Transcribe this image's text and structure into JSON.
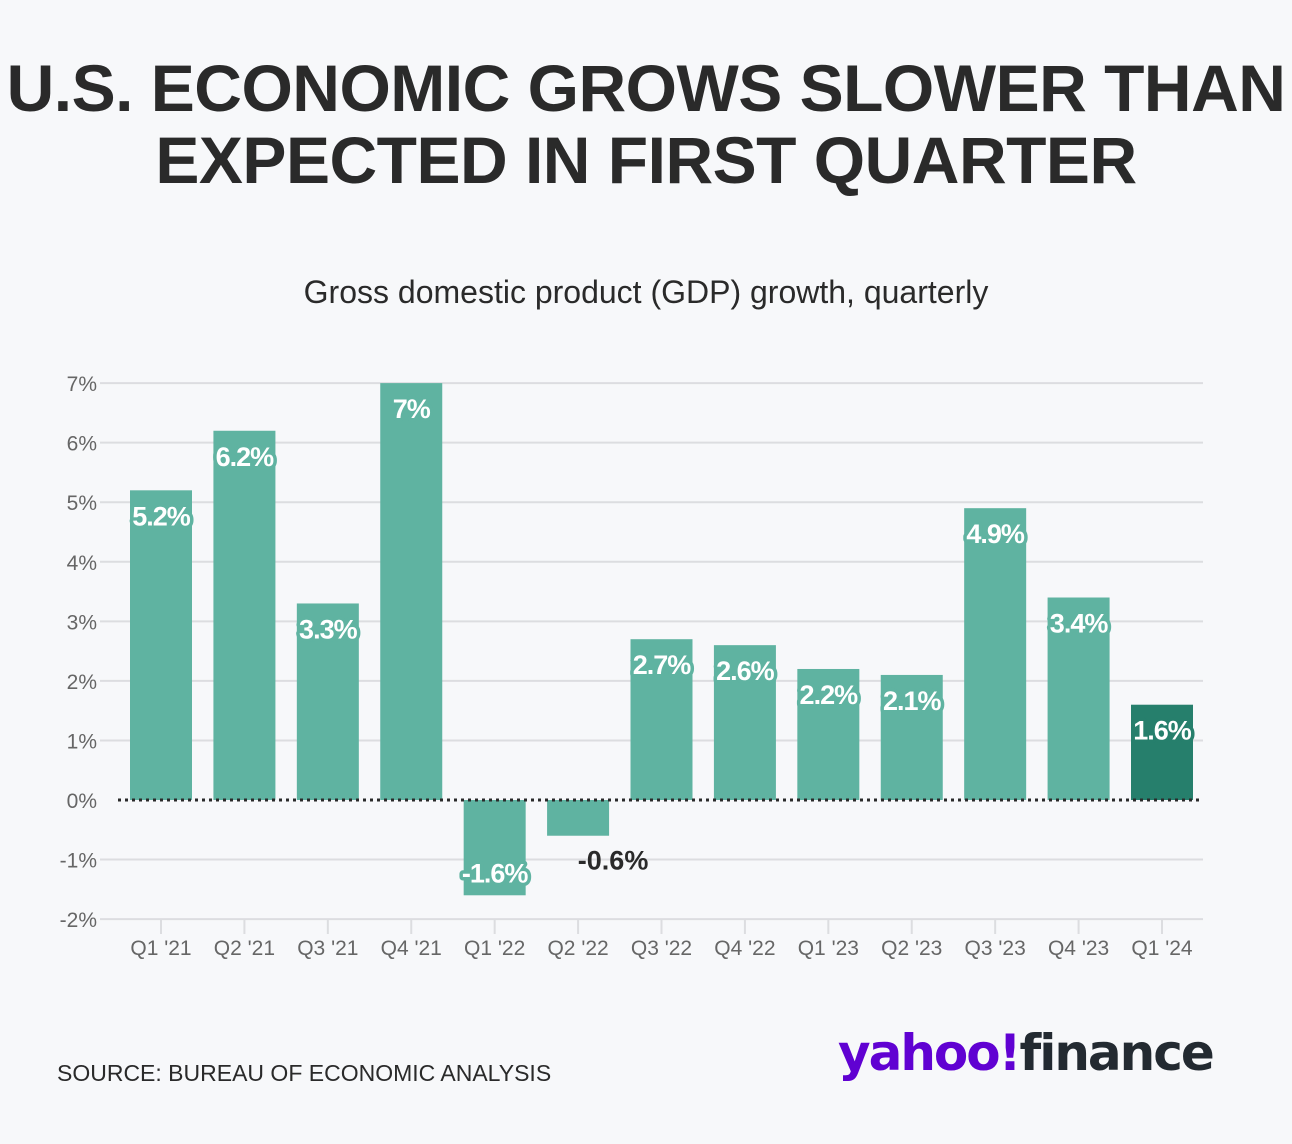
{
  "title": "U.S. ECONOMIC GROWS SLOWER THAN EXPECTED IN FIRST QUARTER",
  "subtitle": "Gross domestic product (GDP) growth, quarterly",
  "source": "SOURCE: BUREAU OF ECONOMIC ANALYSIS",
  "logo": {
    "part1": "yahoo!",
    "part2": "finance"
  },
  "colors": {
    "bar": "#5fb3a1",
    "highlight": "#267f6c",
    "text": "#2a2a2a",
    "grid": "#dcdde0",
    "logo_purple": "#6001d2"
  },
  "chart_data": {
    "type": "bar",
    "title": "Gross domestic product (GDP) growth, quarterly",
    "xlabel": "",
    "ylabel": "",
    "categories": [
      "Q1 '21",
      "Q2 '21",
      "Q3 '21",
      "Q4 '21",
      "Q1 '22",
      "Q2 '22",
      "Q3 '22",
      "Q4 '22",
      "Q1 '23",
      "Q2 '23",
      "Q3 '23",
      "Q4 '23",
      "Q1 '24"
    ],
    "values": [
      5.2,
      6.2,
      3.3,
      7,
      -1.6,
      -0.6,
      2.7,
      2.6,
      2.2,
      2.1,
      4.9,
      3.4,
      1.6
    ],
    "data_labels": [
      "5.2%",
      "6.2%",
      "3.3%",
      "7%",
      "-1.6%",
      "-0.6%",
      "2.7%",
      "2.6%",
      "2.2%",
      "2.1%",
      "4.9%",
      "3.4%",
      "1.6%"
    ],
    "highlight_index": 12,
    "ylim": [
      -2,
      7
    ],
    "yticks": [
      7,
      6,
      5,
      4,
      3,
      2,
      1,
      0,
      -1,
      -2
    ],
    "ytick_labels": [
      "7%",
      "6%",
      "5%",
      "4%",
      "3%",
      "2%",
      "1%",
      "0%",
      "-1%",
      "-2%"
    ],
    "grid": true
  }
}
